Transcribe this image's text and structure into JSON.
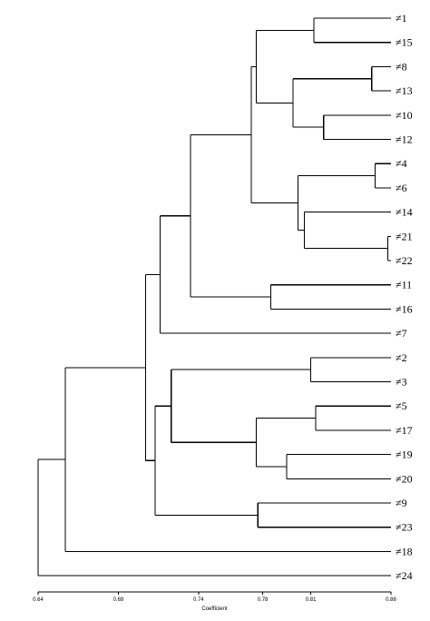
{
  "chart_data": {
    "type": "dendrogram",
    "xlabel": "Coefficient",
    "xlim": [
      0.64,
      0.86
    ],
    "xticks": [
      0.64,
      0.69,
      0.74,
      0.78,
      0.81,
      0.86
    ],
    "tick_labels": [
      "0.64",
      "0.69",
      "0.74",
      "0.78",
      "0.81",
      "0.86"
    ],
    "leaves": [
      {
        "id": 1,
        "label": "≠1"
      },
      {
        "id": 15,
        "label": "≠15"
      },
      {
        "id": 8,
        "label": "≠8"
      },
      {
        "id": 13,
        "label": "≠13"
      },
      {
        "id": 10,
        "label": "≠10"
      },
      {
        "id": 12,
        "label": "≠12"
      },
      {
        "id": 4,
        "label": "≠4"
      },
      {
        "id": 6,
        "label": "≠6"
      },
      {
        "id": 14,
        "label": "≠14"
      },
      {
        "id": 21,
        "label": "≠21"
      },
      {
        "id": 22,
        "label": "≠22"
      },
      {
        "id": 11,
        "label": "≠11"
      },
      {
        "id": 16,
        "label": "≠16"
      },
      {
        "id": 7,
        "label": "≠7"
      },
      {
        "id": 2,
        "label": "≠2"
      },
      {
        "id": 3,
        "label": "≠3"
      },
      {
        "id": 5,
        "label": "≠5"
      },
      {
        "id": 17,
        "label": "≠17"
      },
      {
        "id": 19,
        "label": "≠19"
      },
      {
        "id": 20,
        "label": "≠20"
      },
      {
        "id": 9,
        "label": "≠9"
      },
      {
        "id": 23,
        "label": "≠23"
      },
      {
        "id": 18,
        "label": "≠18"
      },
      {
        "id": 24,
        "label": "≠24"
      }
    ],
    "merges": [
      {
        "children": [
          "L0",
          "L1"
        ],
        "height": 0.812
      },
      {
        "children": [
          "L2",
          "L3"
        ],
        "height": 0.848
      },
      {
        "children": [
          "L4",
          "L5"
        ],
        "height": 0.818
      },
      {
        "children": [
          "M1",
          "M2"
        ],
        "height": 0.799
      },
      {
        "children": [
          "M0",
          "M3"
        ],
        "height": 0.776
      },
      {
        "children": [
          "L6",
          "L7"
        ],
        "height": 0.85
      },
      {
        "children": [
          "L9",
          "L10"
        ],
        "height": 0.858
      },
      {
        "children": [
          "L8",
          "M6"
        ],
        "height": 0.806
      },
      {
        "children": [
          "M5",
          "M7"
        ],
        "height": 0.802
      },
      {
        "children": [
          "M4",
          "M8"
        ],
        "height": 0.773
      },
      {
        "children": [
          "L11",
          "L12"
        ],
        "height": 0.785
      },
      {
        "children": [
          "M9",
          "M10"
        ],
        "height": 0.735
      },
      {
        "children": [
          "M11",
          "L13"
        ],
        "height": 0.716
      },
      {
        "children": [
          "L14",
          "L15"
        ],
        "height": 0.81
      },
      {
        "children": [
          "L16",
          "L17"
        ],
        "height": 0.813
      },
      {
        "children": [
          "L18",
          "L19"
        ],
        "height": 0.795
      },
      {
        "children": [
          "M14",
          "M15"
        ],
        "height": 0.776
      },
      {
        "children": [
          "M13",
          "M16"
        ],
        "height": 0.723
      },
      {
        "children": [
          "L20",
          "L21"
        ],
        "height": 0.777
      },
      {
        "children": [
          "M17",
          "M18"
        ],
        "height": 0.713
      },
      {
        "children": [
          "M12",
          "M19"
        ],
        "height": 0.707
      },
      {
        "children": [
          "M20",
          "L22"
        ],
        "height": 0.657
      },
      {
        "children": [
          "M21",
          "L23"
        ],
        "height": 0.64
      }
    ]
  }
}
